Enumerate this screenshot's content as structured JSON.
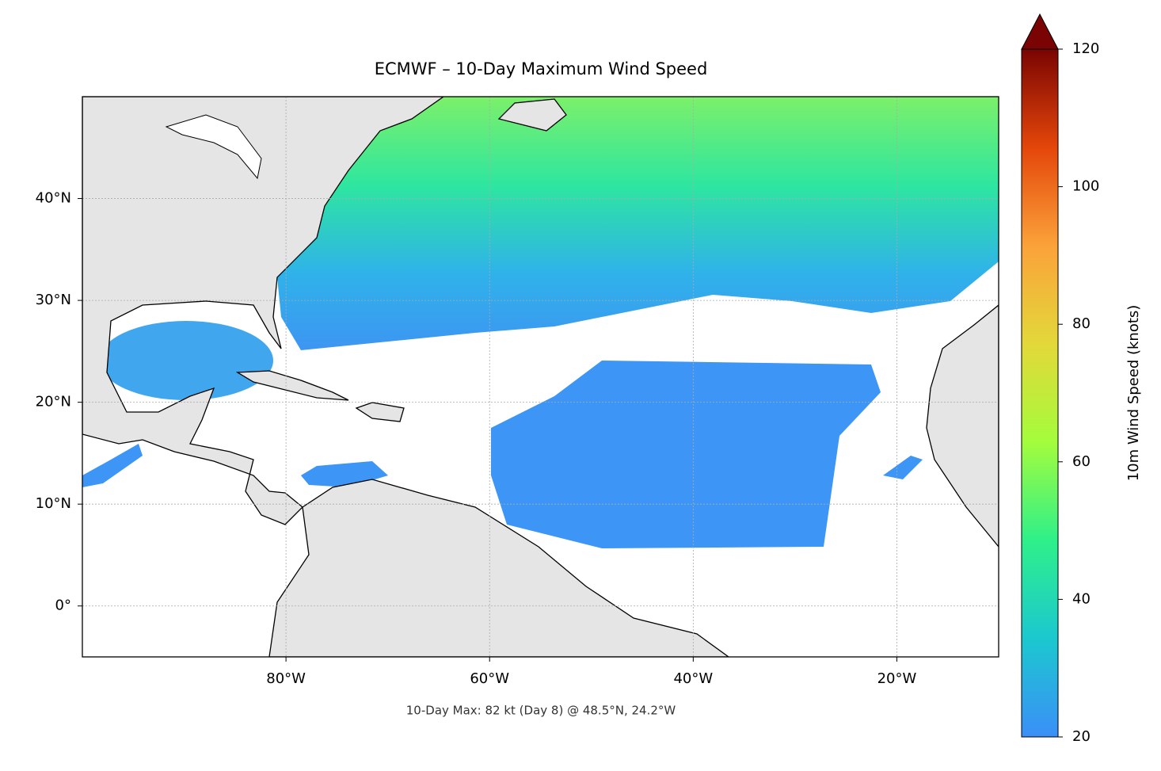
{
  "chart_data": {
    "type": "map",
    "title": "ECMWF – 10-Day Maximum Wind Speed",
    "annotation": "10-Day Max: 82 kt (Day 8) @ 48.5°N, 24.2°W",
    "xlim": [
      -100,
      -10
    ],
    "ylim": [
      -5,
      50
    ],
    "xticks": [
      {
        "value": -80,
        "label": "80°W"
      },
      {
        "value": -60,
        "label": "60°W"
      },
      {
        "value": -40,
        "label": "40°W"
      },
      {
        "value": -20,
        "label": "20°W"
      }
    ],
    "yticks": [
      {
        "value": 0,
        "label": "0°"
      },
      {
        "value": 10,
        "label": "10°N"
      },
      {
        "value": 20,
        "label": "20°N"
      },
      {
        "value": 30,
        "label": "30°N"
      },
      {
        "value": 40,
        "label": "40°N"
      }
    ],
    "grid": true,
    "colorbar": {
      "label": "10m Wind Speed (knots)",
      "lim": [
        20,
        120
      ],
      "ticks": [
        20,
        40,
        60,
        80,
        100,
        120
      ],
      "colors": [
        "#3b8ff8",
        "#1bc8cf",
        "#2ef08a",
        "#a4fc3c",
        "#e3d83a",
        "#fba23a",
        "#e4460a",
        "#7a0403"
      ]
    }
  }
}
